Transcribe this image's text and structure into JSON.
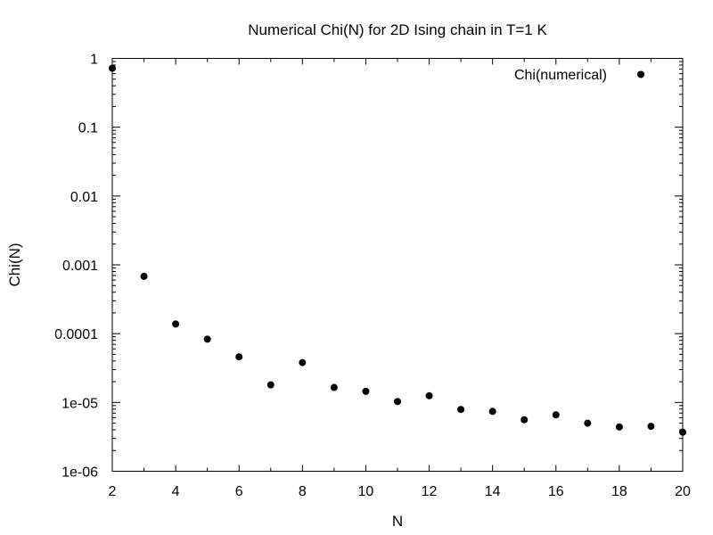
{
  "chart_data": {
    "type": "scatter",
    "title": "Numerical Chi(N) for 2D Ising chain in T=1 K",
    "xlabel": "N",
    "ylabel": "Chi(N)",
    "x_scale": "linear",
    "y_scale": "log",
    "xlim": [
      2,
      20
    ],
    "ylim": [
      1e-06,
      1
    ],
    "x_ticks": [
      2,
      4,
      6,
      8,
      10,
      12,
      14,
      16,
      18,
      20
    ],
    "x_tick_labels": [
      "2",
      "4",
      "6",
      "8",
      "10",
      "12",
      "14",
      "16",
      "18",
      "20"
    ],
    "y_ticks": [
      1e-06,
      1e-05,
      0.0001,
      0.001,
      0.01,
      0.1,
      1
    ],
    "y_tick_labels": [
      "1e-06",
      "1e-05",
      "0.0001",
      "0.001",
      "0.01",
      "0.1",
      "1"
    ],
    "grid": false,
    "legend_position": "top-right",
    "series": [
      {
        "name": "Chi(numerical)",
        "marker": "filled-circle",
        "color": "#000000",
        "x": [
          2,
          3,
          4,
          5,
          6,
          7,
          8,
          9,
          10,
          11,
          12,
          13,
          14,
          15,
          16,
          17,
          18,
          19,
          20
        ],
        "y": [
          0.72,
          0.00068,
          0.000138,
          8.3e-05,
          4.6e-05,
          1.8e-05,
          3.8e-05,
          1.65e-05,
          1.45e-05,
          1.03e-05,
          1.25e-05,
          7.9e-06,
          7.4e-06,
          5.6e-06,
          6.6e-06,
          5e-06,
          4.4e-06,
          4.5e-06,
          3.7e-06
        ]
      }
    ]
  }
}
